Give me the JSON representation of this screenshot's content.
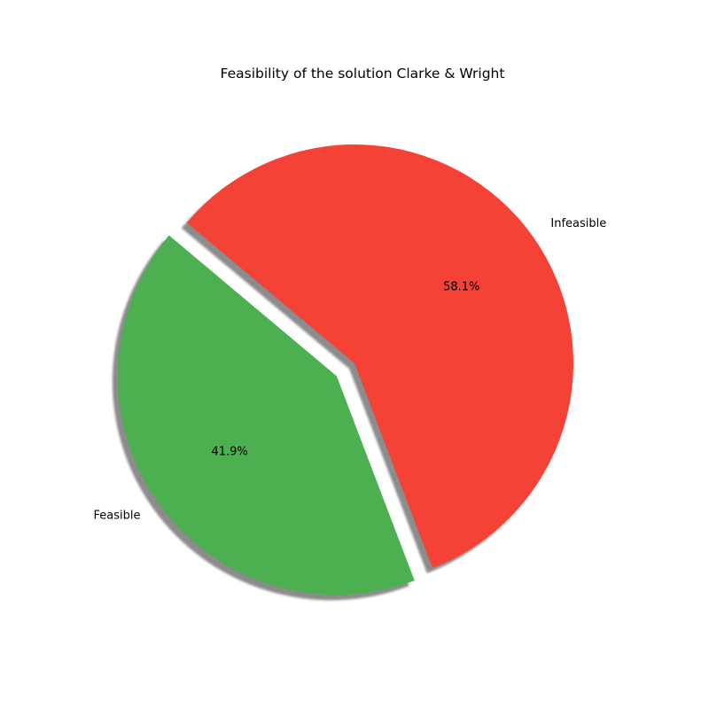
{
  "chart_data": {
    "type": "pie",
    "title": "Feasibility of the solution Clarke & Wright",
    "slices": [
      {
        "label": "Feasible",
        "value": 41.9,
        "percent_label": "41.9%",
        "color": "#4CAF50",
        "explode": 0.1
      },
      {
        "label": "Infeasible",
        "value": 58.1,
        "percent_label": "58.1%",
        "color": "#F44336",
        "explode": 0
      }
    ],
    "start_angle_deg": 140,
    "shadow": true,
    "legend": "none"
  }
}
